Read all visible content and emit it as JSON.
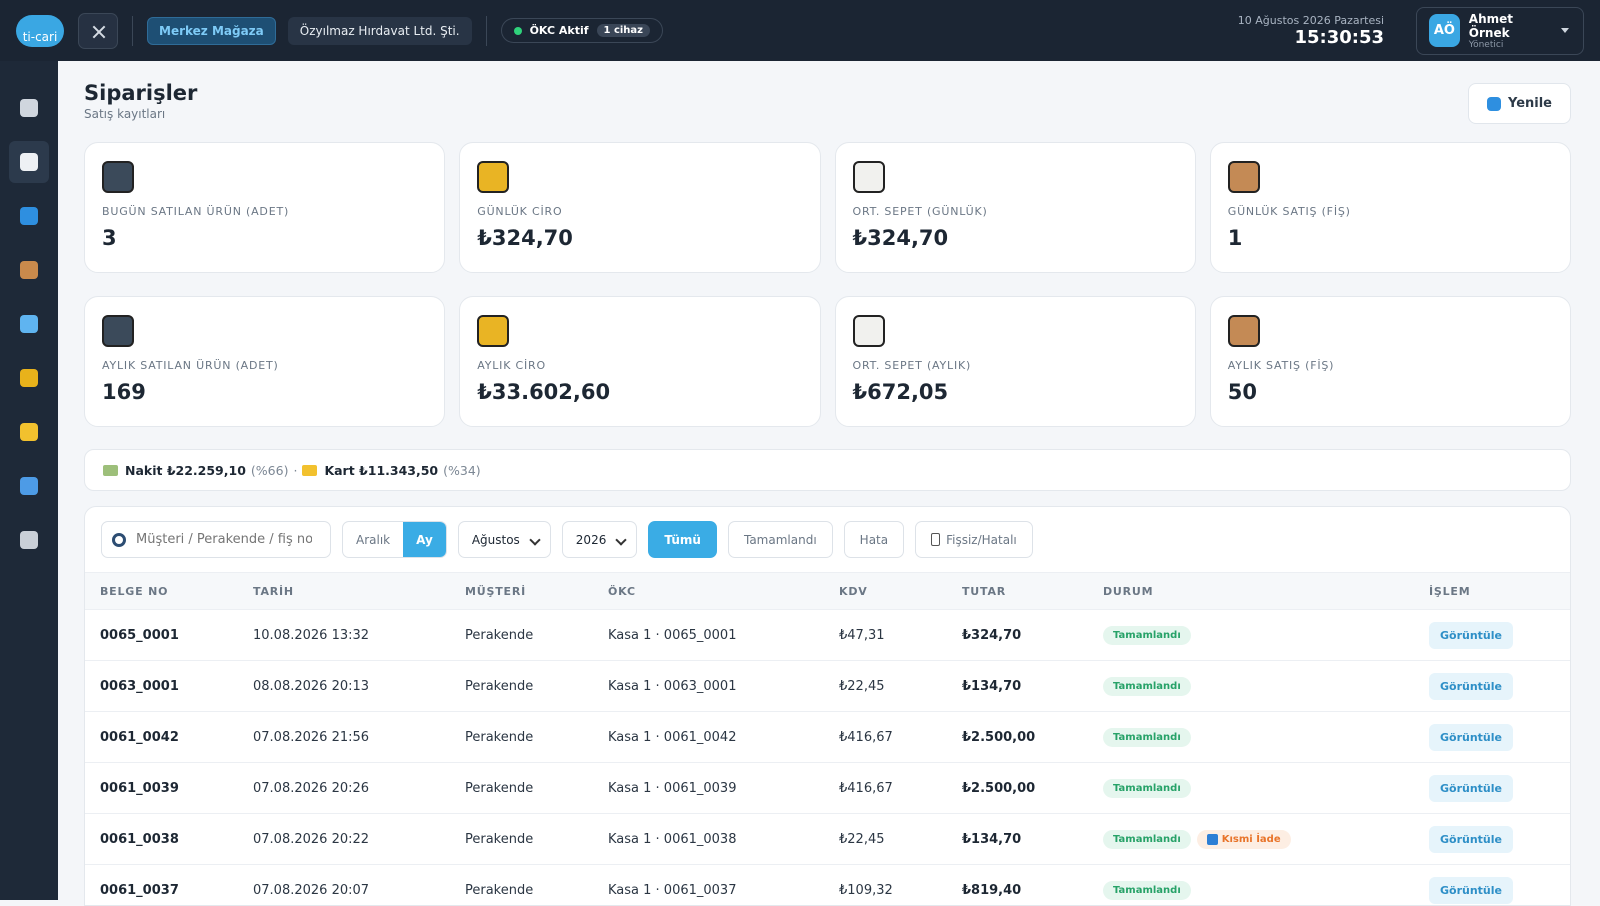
{
  "header": {
    "logo": "ti-cari",
    "store": "Merkez Mağaza",
    "company": "Özyılmaz Hırdavat Ltd. Şti.",
    "okc_status": "ÖKC Aktif",
    "okc_devices": "1 cihaz",
    "date": "10 Ağustos 2026 Pazartesi",
    "time": "15:30:53",
    "user_initials": "AÖ",
    "user_name": "Ahmet Örnek",
    "user_role": "Yönetici"
  },
  "page": {
    "title": "Siparişler",
    "subtitle": "Satış kayıtları",
    "refresh": "Yenile"
  },
  "stats": [
    {
      "label": "BUGÜN SATILAN ÜRÜN (ADET)",
      "value": "3"
    },
    {
      "label": "GÜNLÜK CİRO",
      "value": "₺324,70"
    },
    {
      "label": "ORT. SEPET (GÜNLÜK)",
      "value": "₺324,70"
    },
    {
      "label": "GÜNLÜK SATIŞ (FİŞ)",
      "value": "1"
    },
    {
      "label": "AYLIK SATILAN ÜRÜN (ADET)",
      "value": "169"
    },
    {
      "label": "AYLIK CİRO",
      "value": "₺33.602,60"
    },
    {
      "label": "ORT. SEPET (AYLIK)",
      "value": "₺672,05"
    },
    {
      "label": "AYLIK SATIŞ (FİŞ)",
      "value": "50"
    }
  ],
  "payments": {
    "items": [
      {
        "label": "Nakit ₺22.259,10",
        "pct": "(%66)"
      },
      {
        "label": "Kart ₺11.343,50",
        "pct": "(%34)"
      }
    ],
    "separator": "·"
  },
  "filters": {
    "search_placeholder": "Müşteri / Perakende / fiş no a",
    "ranges": [
      "Aralık",
      "Ay"
    ],
    "month": "Ağustos",
    "year": "2026",
    "statuses": [
      "Tümü",
      "Tamamlandı",
      "Hata",
      "Fişsiz/Hatalı"
    ]
  },
  "table": {
    "columns": [
      "BELGE NO",
      "TARİH",
      "MÜŞTERİ",
      "ÖKC",
      "KDV",
      "TUTAR",
      "DURUM",
      "İŞLEM"
    ],
    "rows": [
      {
        "doc": "0065_0001",
        "date": "10.08.2026 13:32",
        "customer": "Perakende",
        "okc": "Kasa 1 · 0065_0001",
        "kdv": "₺47,31",
        "total": "₺324,70",
        "status": [
          "Tamamlandı"
        ],
        "action": "Görüntüle"
      },
      {
        "doc": "0063_0001",
        "date": "08.08.2026 20:13",
        "customer": "Perakende",
        "okc": "Kasa 1 · 0063_0001",
        "kdv": "₺22,45",
        "total": "₺134,70",
        "status": [
          "Tamamlandı"
        ],
        "action": "Görüntüle"
      },
      {
        "doc": "0061_0042",
        "date": "07.08.2026 21:56",
        "customer": "Perakende",
        "okc": "Kasa 1 · 0061_0042",
        "kdv": "₺416,67",
        "total": "₺2.500,00",
        "status": [
          "Tamamlandı"
        ],
        "action": "Görüntüle"
      },
      {
        "doc": "0061_0039",
        "date": "07.08.2026 20:26",
        "customer": "Perakende",
        "okc": "Kasa 1 · 0061_0039",
        "kdv": "₺416,67",
        "total": "₺2.500,00",
        "status": [
          "Tamamlandı"
        ],
        "action": "Görüntüle"
      },
      {
        "doc": "0061_0038",
        "date": "07.08.2026 20:22",
        "customer": "Perakende",
        "okc": "Kasa 1 · 0061_0038",
        "kdv": "₺22,45",
        "total": "₺134,70",
        "status": [
          "Tamamlandı",
          "Kısmi İade"
        ],
        "action": "Görüntüle"
      },
      {
        "doc": "0061_0037",
        "date": "07.08.2026 20:07",
        "customer": "Perakende",
        "okc": "Kasa 1 · 0061_0037",
        "kdv": "₺109,32",
        "total": "₺819,40",
        "status": [
          "Tamamlandı"
        ],
        "action": "Görüntüle"
      }
    ]
  }
}
